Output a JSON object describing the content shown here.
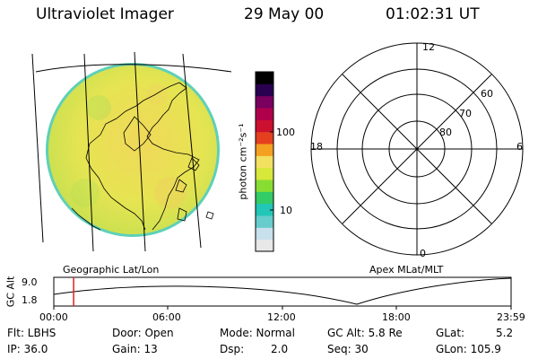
{
  "header": {
    "instrument": "Ultraviolet Imager",
    "date": "29 May 00",
    "time": "01:02:31 UT"
  },
  "colorbar": {
    "unit_label": "photon cm⁻²s⁻¹",
    "tick_100": "100",
    "tick_10": "10",
    "colors": [
      "#e8e8e8",
      "#c8e0ec",
      "#66cccc",
      "#22c7b8",
      "#33cc66",
      "#88dd33",
      "#d8e83a",
      "#f2e060",
      "#f4a020",
      "#e44020",
      "#cc1030",
      "#b0004c",
      "#7a0060",
      "#2a0050",
      "#000000"
    ]
  },
  "geo_panel": {
    "label": "Geographic Lat/Lon",
    "disk_color": "#e4e44a",
    "rim_color": "#5ed0b8"
  },
  "polar_panel": {
    "label": "Apex MLat/MLT",
    "mlt_12": "12",
    "mlt_18": "18",
    "mlt_6": "6",
    "mlt_0": "0",
    "lat_60": "60",
    "lat_70": "70",
    "lat_80": "80"
  },
  "altitude_plot": {
    "ylabel": "GC Alt",
    "y_top": "9.0",
    "y_bottom": "1.8",
    "x_ticks": [
      "00:00",
      "06:00",
      "12:00",
      "18:00",
      "23:59"
    ],
    "marker_time_hours": 1.04,
    "marker_color": "#e02020"
  },
  "status": {
    "flt": "Flt: LBHS",
    "ip": "IP: 36.0",
    "door": "Door: Open",
    "gain": "Gain: 13",
    "mode": "Mode: Normal",
    "dsp_label": "Dsp:",
    "dsp_value": "2.0",
    "gc_alt": "GC Alt: 5.8 Re",
    "seq": "Seq: 30",
    "glat_label": "GLat:",
    "glat_value": "5.2",
    "glon": "GLon: 105.9"
  }
}
